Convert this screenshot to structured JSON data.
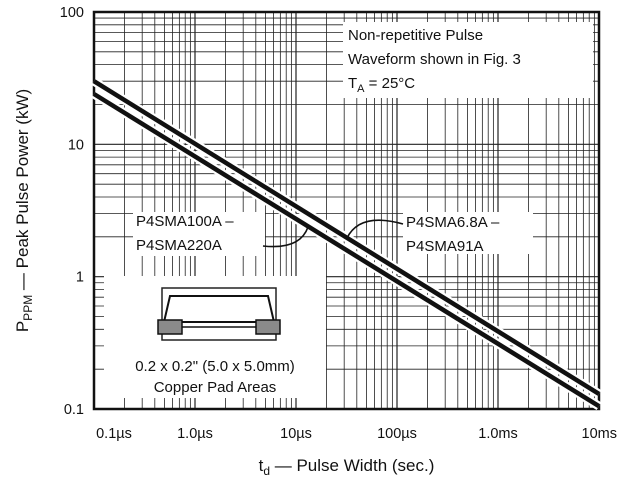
{
  "chart_data": {
    "type": "line",
    "x_scale": "log",
    "y_scale": "log",
    "xlim_seconds": [
      1e-07,
      0.01
    ],
    "ylim": [
      0.1,
      100
    ],
    "grid": true,
    "xlabel_main": "t",
    "xlabel_sub": "d",
    "xlabel_rest": " — Pulse Width (sec.)",
    "ylabel_main": "P",
    "ylabel_sub": "PPM",
    "ylabel_rest": " — Peak Pulse Power (kW)",
    "x_ticks": [
      {
        "value": 1e-07,
        "label": "0.1µs"
      },
      {
        "value": 1e-06,
        "label": "1.0µs"
      },
      {
        "value": 1e-05,
        "label": "10µs"
      },
      {
        "value": 0.0001,
        "label": "100µs"
      },
      {
        "value": 0.001,
        "label": "1.0ms"
      },
      {
        "value": 0.01,
        "label": "10ms"
      }
    ],
    "y_ticks": [
      {
        "value": 0.1,
        "label": "0.1"
      },
      {
        "value": 1,
        "label": "1"
      },
      {
        "value": 10,
        "label": "10"
      },
      {
        "value": 100,
        "label": "100"
      }
    ],
    "series": [
      {
        "name": "P4SMA6.8A – P4SMA91A",
        "x": [
          1e-07,
          0.01
        ],
        "y": [
          30,
          0.13
        ]
      },
      {
        "name": "P4SMA100A – P4SMA220A",
        "x": [
          1e-07,
          0.01
        ],
        "y": [
          24,
          0.105
        ]
      }
    ],
    "annotations": {
      "condition_line1": "Non-repetitive Pulse",
      "condition_line2": "Waveform shown in Fig. 3",
      "condition_line3_main": "T",
      "condition_line3_sub": "A",
      "condition_line3_rest": " = 25°C",
      "series_a_line1": "P4SMA6.8A –",
      "series_a_line2": "P4SMA91A",
      "series_b_line1": "P4SMA100A –",
      "series_b_line2": "P4SMA220A",
      "pad_line1": "0.2 x 0.2\" (5.0 x 5.0mm)",
      "pad_line2": "Copper Pad Areas"
    }
  }
}
